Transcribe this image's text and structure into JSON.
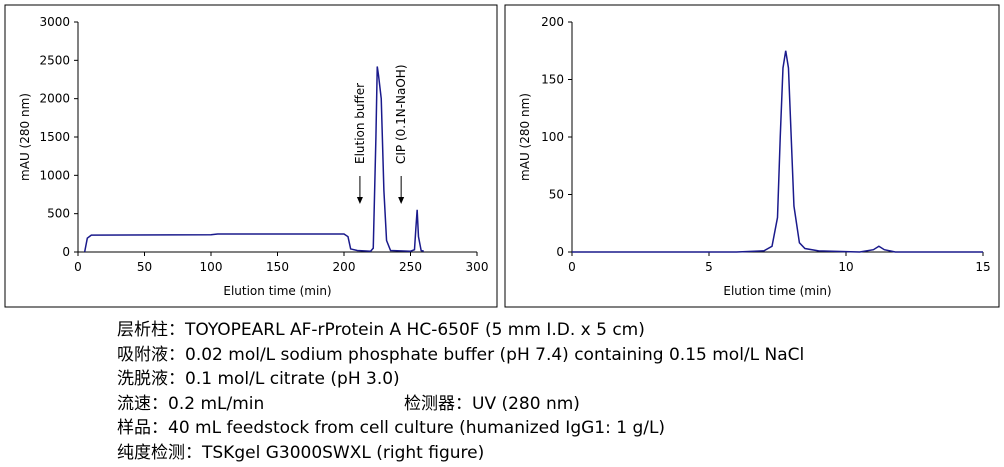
{
  "chart_data": [
    {
      "type": "line",
      "xlabel": "Elution time (min)",
      "ylabel": "mAU (280 nm)",
      "x": [
        5,
        7,
        10,
        100,
        105,
        200,
        203,
        205,
        210,
        220,
        222,
        224,
        225,
        226,
        228,
        230,
        232,
        235,
        250,
        253,
        254,
        255,
        256,
        258,
        260
      ],
      "values": [
        0,
        180,
        220,
        225,
        235,
        235,
        200,
        40,
        20,
        10,
        50,
        1500,
        2420,
        2300,
        2000,
        800,
        150,
        20,
        10,
        30,
        300,
        550,
        200,
        20,
        10
      ],
      "color": "#1a1a8c",
      "xlim": [
        0,
        300
      ],
      "xticks": [
        0,
        50,
        100,
        150,
        200,
        250,
        300
      ],
      "ylim": [
        0,
        3000
      ],
      "yticks": [
        0,
        500,
        1000,
        1500,
        2000,
        2500,
        3000
      ],
      "annotations": [
        "Elution buffer",
        "CIP (0.1N-NaOH)"
      ]
    },
    {
      "type": "line",
      "xlabel": "Elution time (min)",
      "ylabel": "mAU (280 nm)",
      "x": [
        0,
        6,
        7,
        7.3,
        7.5,
        7.6,
        7.7,
        7.8,
        7.9,
        8,
        8.1,
        8.3,
        8.5,
        9,
        10.5,
        11,
        11.2,
        11.4,
        11.8,
        15
      ],
      "values": [
        0,
        0,
        1,
        5,
        30,
        100,
        160,
        175,
        160,
        100,
        40,
        8,
        3,
        1,
        0,
        2,
        5,
        2,
        0,
        0
      ],
      "color": "#1a1a8c",
      "xlim": [
        0,
        15
      ],
      "xticks": [
        0,
        5,
        10,
        15
      ],
      "ylim": [
        0,
        200
      ],
      "yticks": [
        0,
        50,
        100,
        150,
        200
      ]
    }
  ],
  "notes": [
    [
      {
        "label": "层析柱：",
        "text": "TOYOPEARL AF-rProtein A HC-650F (5 mm I.D. x 5 cm)"
      }
    ],
    [
      {
        "label": "吸附液：",
        "text": "0.02 mol/L sodium phosphate buffer (pH 7.4) containing 0.15 mol/L NaCl"
      }
    ],
    [
      {
        "label": "洗脱液：",
        "text": "0.1 mol/L citrate (pH 3.0)"
      }
    ],
    [
      {
        "label": "流速：",
        "text": "0.2 mL/min"
      },
      {
        "label": "检测器：",
        "text": "UV (280 nm)"
      }
    ],
    [
      {
        "label": "样品：",
        "text": "40 mL feedstock from cell culture (humanized IgG1: 1 g/L)"
      }
    ],
    [
      {
        "label": "纯度检测：",
        "text": "TSKgel G3000SWXL (right figure)"
      }
    ]
  ]
}
